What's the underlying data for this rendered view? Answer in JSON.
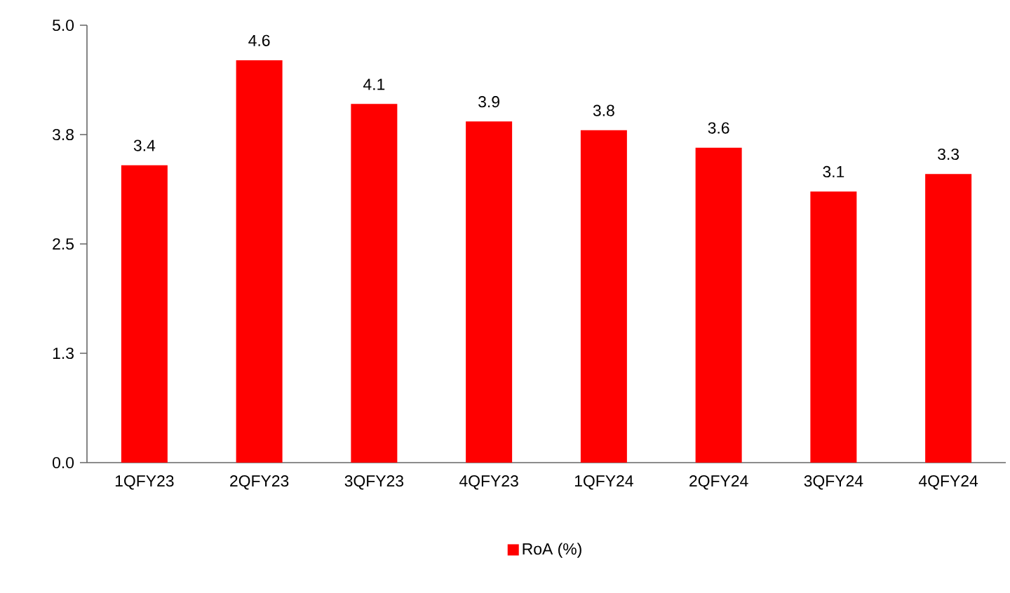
{
  "chart_data": {
    "type": "bar",
    "categories": [
      "1QFY23",
      "2QFY23",
      "3QFY23",
      "4QFY23",
      "1QFY24",
      "2QFY24",
      "3QFY24",
      "4QFY24"
    ],
    "series": [
      {
        "name": "RoA (%)",
        "color": "#ff0000",
        "values": [
          3.4,
          4.6,
          4.1,
          3.9,
          3.8,
          3.6,
          3.1,
          3.3
        ]
      }
    ],
    "ylim": [
      0,
      5
    ],
    "yticks": [
      {
        "value": 0,
        "label": "0.0"
      },
      {
        "value": 1.25,
        "label": "1.3"
      },
      {
        "value": 2.5,
        "label": "2.5"
      },
      {
        "value": 3.75,
        "label": "3.8"
      },
      {
        "value": 5,
        "label": "5.0"
      }
    ],
    "data_labels": true,
    "grid": false,
    "legend": "bottom"
  }
}
